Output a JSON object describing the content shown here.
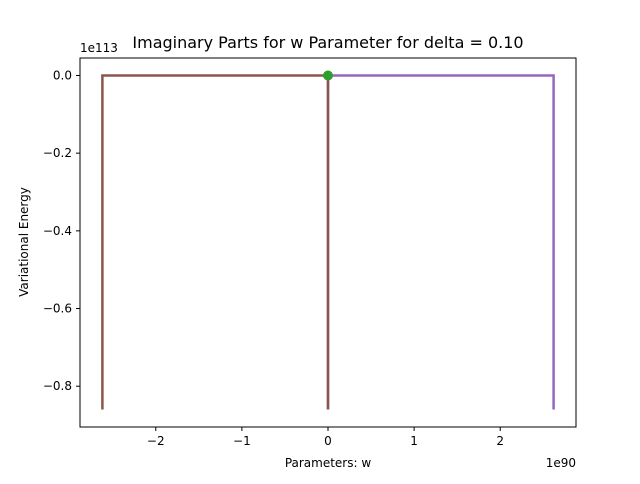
{
  "chart_data": {
    "type": "line",
    "title": "Imaginary Parts for w Parameter for delta = 0.10",
    "xlabel": "Parameters: w",
    "ylabel": "Variational Energy",
    "x_offset_label": "1e90",
    "y_offset_label": "1e113",
    "xlim": [
      -2.88,
      2.88
    ],
    "ylim": [
      -0.905,
      0.045
    ],
    "xticks": [
      {
        "value": -2,
        "label": "−2"
      },
      {
        "value": -1,
        "label": "−1"
      },
      {
        "value": 0,
        "label": "0"
      },
      {
        "value": 1,
        "label": "1"
      },
      {
        "value": 2,
        "label": "2"
      }
    ],
    "yticks": [
      {
        "value": 0.0,
        "label": "0.0"
      },
      {
        "value": -0.2,
        "label": "−0.2"
      },
      {
        "value": -0.4,
        "label": "−0.4"
      },
      {
        "value": -0.6,
        "label": "−0.6"
      },
      {
        "value": -0.8,
        "label": "−0.8"
      }
    ],
    "grid": false,
    "series": [
      {
        "color": "#9467bd",
        "marker": "none",
        "points": [
          [
            0,
            -0.86
          ],
          [
            0,
            0
          ],
          [
            2.62,
            0
          ],
          [
            2.62,
            -0.86
          ]
        ]
      },
      {
        "color": "#8c564b",
        "marker": "none",
        "points": [
          [
            -2.62,
            -0.86
          ],
          [
            -2.62,
            0
          ],
          [
            0,
            0
          ],
          [
            0,
            -0.86
          ]
        ]
      },
      {
        "color": "#2ca02c",
        "marker": "circle",
        "points": [
          [
            0,
            0
          ]
        ]
      }
    ]
  }
}
